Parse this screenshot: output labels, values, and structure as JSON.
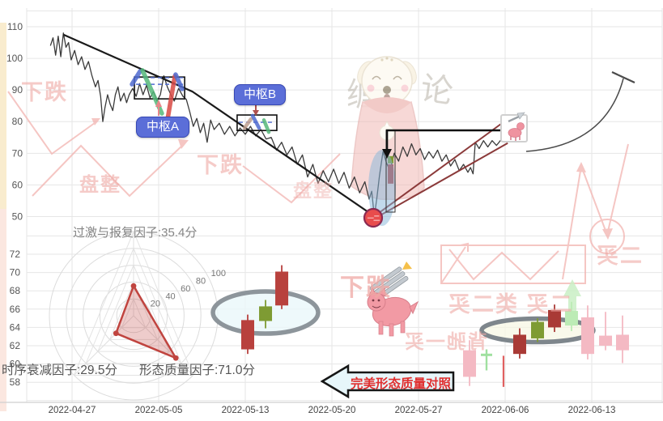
{
  "labels": {
    "pivot_a": "中枢A",
    "pivot_b": "中枢B",
    "badge": "一二",
    "banner": "完美形态质量对照",
    "factor_overreact": "过激与报复因子:35.4分",
    "factor_decay": "时序衰减因子:29.5分",
    "factor_quality": "形态质量因子:71.0分"
  },
  "mascot": {
    "left_char": "缠",
    "right_char": "论"
  },
  "watermarks": {
    "t1": "下跌",
    "t2": "盘整",
    "t3": "下跌",
    "t4": "盘整",
    "t5": "下跌",
    "t6": "二买",
    "t7": "二买 类二买",
    "t8": "背驰一买"
  },
  "colors": {
    "price": "#3a3a3a",
    "trend": "#1a1a1a",
    "rise_line": "#8b3a3a",
    "red": "#b8413d",
    "darkred": "#a93a36",
    "olive": "#7e9b33",
    "pink": "#f4b9c3",
    "lightgreen": "#bcebb5",
    "doji": "#9fe09f",
    "wickred": "#e06060",
    "green_stroke": "#55b87a",
    "blue_stroke": "#4f6bd0",
    "red_stroke": "#d94a44",
    "tan_stroke": "#c0a090",
    "pivot_label_bg": "#5b6ed8",
    "badge": "#e84c4c",
    "radar": "#c0443f",
    "highlight_blue": "#85b6d9",
    "ellipse1_fill": "#eaf7fa",
    "ellipse2_fill": "#f7f7e2",
    "ellipse_stroke": "#8d959b",
    "grid": "#e6e6e6",
    "watermark_red": "#efa9a5",
    "banner_text": "#e02f2f"
  },
  "chart_data": [
    {
      "type": "line",
      "name": "price-pane",
      "x_dates": [
        "2022-04-27",
        "2022-05-05",
        "2022-05-13",
        "2022-05-20",
        "2022-05-27",
        "2022-06-06",
        "2022-06-13"
      ],
      "ylim": [
        50,
        110
      ],
      "y_ticks": [
        110,
        100,
        90,
        80,
        70,
        60,
        50
      ],
      "grid": true,
      "series": [
        {
          "name": "price",
          "points": [
            [
              -0.25,
              104
            ],
            [
              -0.22,
              106.5
            ],
            [
              -0.19,
              101
            ],
            [
              -0.16,
              107
            ],
            [
              -0.13,
              100.5
            ],
            [
              -0.1,
              108
            ],
            [
              -0.07,
              103.5
            ],
            [
              -0.04,
              105
            ],
            [
              -0.01,
              99.5
            ],
            [
              0.03,
              102.5
            ],
            [
              0.07,
              98
            ],
            [
              0.11,
              100.5
            ],
            [
              0.15,
              96.5
            ],
            [
              0.19,
              99
            ],
            [
              0.23,
              94.5
            ],
            [
              0.27,
              91
            ],
            [
              0.3,
              93
            ],
            [
              0.33,
              88
            ],
            [
              0.355,
              80
            ],
            [
              0.38,
              84.5
            ],
            [
              0.41,
              88.5
            ],
            [
              0.44,
              85.5
            ],
            [
              0.47,
              83.5
            ],
            [
              0.5,
              88.5
            ],
            [
              0.53,
              91
            ],
            [
              0.56,
              86.5
            ],
            [
              0.6,
              89
            ],
            [
              0.63,
              86
            ],
            [
              0.66,
              88.5
            ],
            [
              0.7,
              90.5
            ],
            [
              0.74,
              88
            ],
            [
              0.78,
              92
            ],
            [
              0.82,
              88.5
            ],
            [
              0.86,
              91.5
            ],
            [
              0.9,
              87.5
            ],
            [
              0.94,
              89.5
            ],
            [
              0.98,
              86.5
            ],
            [
              1.02,
              88.5
            ],
            [
              1.06,
              94.5
            ],
            [
              1.1,
              91
            ],
            [
              1.14,
              88.5
            ],
            [
              1.18,
              86.5
            ],
            [
              1.23,
              90.5
            ],
            [
              1.28,
              88
            ],
            [
              1.32,
              87
            ],
            [
              1.36,
              83
            ],
            [
              1.4,
              78.5
            ],
            [
              1.44,
              81
            ],
            [
              1.48,
              76.5
            ],
            [
              1.52,
              79.5
            ],
            [
              1.56,
              73.5
            ],
            [
              1.6,
              80.5
            ],
            [
              1.64,
              77.5
            ],
            [
              1.7,
              79.5
            ],
            [
              1.76,
              76
            ],
            [
              1.82,
              78.5
            ],
            [
              1.88,
              75.5
            ],
            [
              1.94,
              78
            ],
            [
              2.0,
              76
            ],
            [
              2.06,
              78.5
            ],
            [
              2.12,
              75.5
            ],
            [
              2.18,
              77.5
            ],
            [
              2.24,
              74.5
            ],
            [
              2.3,
              75
            ],
            [
              2.36,
              71
            ],
            [
              2.42,
              73.5
            ],
            [
              2.48,
              69.5
            ],
            [
              2.54,
              72
            ],
            [
              2.6,
              66.5
            ],
            [
              2.66,
              69.5
            ],
            [
              2.72,
              62.5
            ],
            [
              2.78,
              66.5
            ],
            [
              2.84,
              60.5
            ],
            [
              2.9,
              64.5
            ],
            [
              2.96,
              61
            ],
            [
              3.02,
              65
            ],
            [
              3.08,
              60.5
            ],
            [
              3.14,
              64
            ],
            [
              3.2,
              59
            ],
            [
              3.26,
              62.5
            ],
            [
              3.32,
              57.5
            ],
            [
              3.38,
              61
            ],
            [
              3.43,
              55.5
            ],
            [
              3.46,
              58
            ],
            [
              3.49,
              50
            ],
            [
              3.52,
              56
            ],
            [
              3.55,
              63
            ],
            [
              3.59,
              70.5
            ],
            [
              3.63,
              67
            ],
            [
              3.67,
              64.5
            ],
            [
              3.72,
              70
            ],
            [
              3.77,
              67.5
            ],
            [
              3.82,
              72
            ],
            [
              3.87,
              69
            ],
            [
              3.92,
              73
            ],
            [
              3.97,
              69.5
            ],
            [
              4.02,
              71.5
            ],
            [
              4.07,
              68
            ],
            [
              4.12,
              70.5
            ],
            [
              4.17,
              68.5
            ],
            [
              4.22,
              71
            ],
            [
              4.27,
              67.5
            ],
            [
              4.32,
              69.5
            ],
            [
              4.37,
              66
            ],
            [
              4.42,
              68
            ],
            [
              4.47,
              64.5
            ],
            [
              4.52,
              66.5
            ],
            [
              4.57,
              64
            ],
            [
              4.6,
              65.5
            ],
            [
              4.63,
              63.5
            ],
            [
              4.655,
              73.5
            ],
            [
              4.7,
              71.5
            ],
            [
              4.75,
              74
            ],
            [
              4.8,
              72
            ],
            [
              4.85,
              74
            ],
            [
              4.9,
              72.5
            ],
            [
              4.96,
              74.5
            ]
          ]
        }
      ],
      "trend_lines": [
        {
          "color": "#1a1a1a",
          "width": 2.2,
          "points": [
            [
              -0.1,
              107.5
            ],
            [
              1.39,
              89.5
            ],
            [
              3.49,
              50.1
            ]
          ]
        },
        {
          "color": "#8b3a3a",
          "width": 2,
          "points": [
            [
              3.49,
              50.1
            ],
            [
              4.953,
              79.3
            ]
          ]
        },
        {
          "color": "#8b3a3a",
          "width": 2,
          "points": [
            [
              3.52,
              49.8
            ],
            [
              5.03,
              73.2
            ]
          ]
        }
      ],
      "pivot_boxes": [
        {
          "name": "中枢A",
          "x": [
            0.72,
            1.3
          ],
          "v": [
            87.2,
            94.1
          ],
          "dash_v": [
            91.8,
            93.9
          ]
        },
        {
          "name": "中枢B",
          "x": [
            1.906,
            2.364
          ],
          "v": [
            77.2,
            82.1
          ],
          "dash_v": [
            79.8
          ]
        }
      ],
      "stroke_segments": [
        {
          "kind": "blue_stroke",
          "w": 5.5,
          "points": [
            [
              0.692,
              91.8
            ],
            [
              0.785,
              95.9
            ]
          ]
        },
        {
          "kind": "green_stroke",
          "w": 5.5,
          "points": [
            [
              0.813,
              96.2
            ],
            [
              1.037,
              82.6
            ]
          ]
        },
        {
          "kind": "red_stroke",
          "w": 5.5,
          "points": [
            [
              1.103,
              80.8
            ],
            [
              1.187,
              94.4
            ]
          ]
        },
        {
          "kind": "blue_stroke",
          "w": 5.5,
          "points": [
            [
              1.196,
              94.9
            ],
            [
              1.271,
              90.3
            ]
          ]
        },
        {
          "kind": "tan_stroke",
          "w": 4.5,
          "points": [
            [
              1.991,
              78.0
            ],
            [
              2.065,
              80.8
            ]
          ]
        },
        {
          "kind": "blue_stroke",
          "w": 4.5,
          "points": [
            [
              2.084,
              81.9
            ],
            [
              2.159,
              78.0
            ]
          ]
        },
        {
          "kind": "green_stroke",
          "w": 4.5,
          "points": [
            [
              2.215,
              80.5
            ],
            [
              2.271,
              76.7
            ]
          ]
        }
      ],
      "mini_candles": [
        {
          "x": 3.678,
          "kind": "olive",
          "body": [
            69.1,
            66.8
          ]
        },
        {
          "x": 3.678,
          "kind": "red",
          "body": [
            66.5,
            60.4
          ]
        }
      ]
    },
    {
      "type": "radar",
      "name": "factor-radar",
      "max": 100,
      "rings": [
        20,
        40,
        60,
        80,
        100
      ],
      "angles_deg": [
        90,
        225,
        315
      ],
      "factors": [
        {
          "name": "过激与报复因子",
          "value": 35.4
        },
        {
          "name": "时序衰减因子",
          "value": 29.5
        },
        {
          "name": "形态质量因子",
          "value": 71.0
        }
      ]
    },
    {
      "type": "candlestick",
      "name": "bottom-pane",
      "ylim": [
        56,
        74
      ],
      "y_ticks": [
        72,
        70,
        68,
        66,
        64,
        62,
        60,
        58
      ],
      "groups": [
        [
          {
            "x": 2.028,
            "kind": "red",
            "body": [
              64.8,
              61.6
            ],
            "wick": [
              65.4,
              61.1
            ]
          },
          {
            "x": 2.234,
            "kind": "olive",
            "body": [
              66.3,
              64.7
            ],
            "wick": [
              67.0,
              63.9
            ]
          },
          {
            "x": 2.421,
            "kind": "red",
            "body": [
              70.1,
              66.4
            ],
            "wick": [
              70.8,
              66.0
            ]
          }
        ],
        [
          {
            "x": 4.589,
            "kind": "pink",
            "body": [
              61.5,
              58.6
            ],
            "wick": [
              62.6,
              57.6
            ]
          },
          {
            "x": 4.785,
            "kind": "doji",
            "body": [
              61.0,
              60.9
            ],
            "wick": [
              61.6,
              59.3
            ]
          },
          {
            "x": 4.981,
            "kind": "wickred",
            "body": null,
            "wick": [
              60.9,
              57.5
            ]
          },
          {
            "x": 5.168,
            "kind": "darkred",
            "body": [
              63.2,
              61.1
            ],
            "wick": [
              63.9,
              60.6
            ]
          },
          {
            "x": 5.374,
            "kind": "olive",
            "body": [
              64.6,
              62.8
            ],
            "wick": [
              65.0,
              62.4
            ]
          },
          {
            "x": 5.57,
            "kind": "darkred",
            "body": [
              65.9,
              64.0
            ],
            "wick": [
              66.5,
              63.5
            ]
          },
          {
            "x": 5.766,
            "kind": "lightgreen",
            "body": [
              65.8,
              64.2
            ],
            "wick": [
              66.8,
              63.6
            ]
          },
          {
            "x": 5.953,
            "kind": "pink",
            "body": [
              65.1,
              61.1
            ],
            "wick": [
              66.4,
              60.5
            ]
          },
          {
            "x": 6.159,
            "kind": "pink",
            "body": [
              63.1,
              62.0
            ],
            "wick": [
              65.7,
              61.5
            ]
          },
          {
            "x": 6.355,
            "kind": "pink",
            "body": [
              63.2,
              61.5
            ],
            "wick": [
              65.3,
              60.1
            ]
          }
        ]
      ]
    }
  ]
}
